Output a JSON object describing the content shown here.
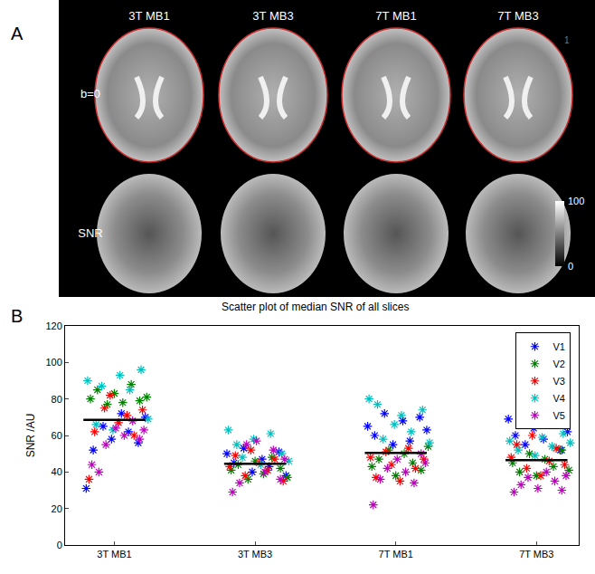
{
  "panel_labels": [
    "A",
    "B"
  ],
  "panel_a": {
    "columns": [
      "3T MB1",
      "3T MB3",
      "7T MB1",
      "7T MB3"
    ],
    "rows": [
      "b=0",
      "SNR"
    ],
    "colorbar": {
      "ticks": [
        0,
        100
      ]
    },
    "mark": "1"
  },
  "chart_data": {
    "type": "scatter",
    "title": "Scatter plot of median SNR of all slices",
    "y_label": "SNR /AU",
    "xlim": [
      0.65,
      4.3
    ],
    "xticks": [
      {
        "value": 1,
        "label": "3T MB1"
      },
      {
        "value": 2,
        "label": "3T MB3"
      },
      {
        "value": 3,
        "label": "7T MB1"
      },
      {
        "value": 4,
        "label": "7T MB3"
      }
    ],
    "ylim": [
      0,
      120
    ],
    "yticks": [
      0,
      20,
      40,
      60,
      80,
      100,
      120
    ],
    "grid": false,
    "legend": "upper right",
    "marker": "asterisk",
    "series": [
      {
        "name": "V1",
        "color": "#0000ff",
        "x": [
          0.8,
          0.85,
          0.92,
          0.98,
          1.05,
          1.1,
          1.17,
          1.22,
          1.8,
          1.85,
          1.92,
          1.98,
          2.05,
          2.1,
          2.17,
          2.22,
          2.8,
          2.85,
          2.92,
          2.98,
          3.05,
          3.1,
          3.17,
          3.22,
          3.8,
          3.85,
          3.92,
          3.98,
          4.05,
          4.1,
          4.17,
          4.22
        ],
        "values": [
          31,
          52,
          65,
          58,
          72,
          62,
          56,
          70,
          50,
          45,
          53,
          40,
          47,
          43,
          51,
          38,
          65,
          60,
          72,
          55,
          68,
          57,
          70,
          63,
          69,
          60,
          55,
          64,
          58,
          67,
          52,
          62
        ]
      },
      {
        "name": "V2",
        "color": "#008000",
        "x": [
          0.83,
          0.88,
          0.95,
          1.0,
          1.06,
          1.12,
          1.18,
          1.23,
          1.83,
          1.88,
          1.95,
          2.0,
          2.06,
          2.12,
          2.18,
          2.23,
          2.83,
          2.88,
          2.95,
          3.0,
          3.06,
          3.12,
          3.18,
          3.23,
          3.83,
          3.88,
          3.95,
          4.0,
          4.06,
          4.12,
          4.18,
          4.23
        ],
        "values": [
          80,
          85,
          77,
          83,
          78,
          88,
          79,
          81,
          41,
          44,
          36,
          46,
          39,
          48,
          42,
          37,
          43,
          47,
          52,
          38,
          50,
          45,
          41,
          54,
          45,
          40,
          50,
          38,
          47,
          43,
          52,
          41
        ]
      },
      {
        "name": "V3",
        "color": "#ff0000",
        "x": [
          0.82,
          0.86,
          0.93,
          0.97,
          1.03,
          1.09,
          1.14,
          1.2,
          1.82,
          1.86,
          1.93,
          1.97,
          2.03,
          2.09,
          2.14,
          2.2,
          2.82,
          2.86,
          2.93,
          2.97,
          3.03,
          3.09,
          3.14,
          3.2,
          3.82,
          3.86,
          3.93,
          3.97,
          4.03,
          4.09,
          4.14,
          4.2
        ],
        "values": [
          36,
          62,
          75,
          82,
          67,
          71,
          60,
          74,
          43,
          49,
          38,
          52,
          45,
          41,
          47,
          35,
          48,
          37,
          51,
          44,
          35,
          53,
          42,
          47,
          48,
          55,
          42,
          60,
          38,
          46,
          53,
          44
        ]
      },
      {
        "name": "V4",
        "color": "#00bfbf",
        "x": [
          0.81,
          0.87,
          0.91,
          0.99,
          1.04,
          1.11,
          1.19,
          1.24,
          1.81,
          1.87,
          1.91,
          1.99,
          2.04,
          2.11,
          2.19,
          2.24,
          2.81,
          2.87,
          2.91,
          2.99,
          3.04,
          3.11,
          3.19,
          3.24,
          3.81,
          3.87,
          3.91,
          3.99,
          4.04,
          4.11,
          4.19,
          4.24
        ],
        "values": [
          90,
          66,
          87,
          63,
          93,
          85,
          96,
          69,
          63,
          55,
          48,
          58,
          44,
          61,
          50,
          46,
          80,
          77,
          58,
          66,
          71,
          62,
          74,
          56,
          57,
          52,
          68,
          49,
          59,
          54,
          61,
          56
        ]
      },
      {
        "name": "V5",
        "color": "#bf00bf",
        "x": [
          0.84,
          0.89,
          0.94,
          1.01,
          1.07,
          1.13,
          1.18,
          1.21,
          1.84,
          1.89,
          1.94,
          2.01,
          2.07,
          2.13,
          2.18,
          2.21,
          2.84,
          2.89,
          2.94,
          3.01,
          3.07,
          3.13,
          3.18,
          3.21,
          3.84,
          3.89,
          3.94,
          4.01,
          4.07,
          4.13,
          4.18,
          4.21
        ],
        "values": [
          44,
          40,
          55,
          64,
          60,
          68,
          58,
          63,
          29,
          34,
          55,
          57,
          40,
          52,
          36,
          47,
          22,
          36,
          42,
          47,
          40,
          34,
          50,
          45,
          29,
          33,
          37,
          31,
          40,
          35,
          30,
          38
        ]
      }
    ],
    "medians": {
      "x": [
        1,
        2,
        3,
        4
      ],
      "values": [
        68.5,
        44.5,
        50.5,
        46.5
      ],
      "color": "#000000"
    }
  }
}
